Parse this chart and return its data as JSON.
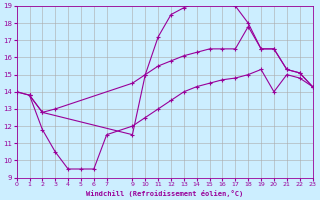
{
  "xlabel": "Windchill (Refroidissement éolien,°C)",
  "background_color": "#cceeff",
  "line_color": "#990099",
  "grid_color": "#aaaaaa",
  "xlim": [
    0,
    23
  ],
  "ylim": [
    9,
    19
  ],
  "xticks": [
    0,
    1,
    2,
    3,
    4,
    5,
    6,
    7,
    9,
    10,
    11,
    12,
    13,
    14,
    15,
    16,
    17,
    18,
    19,
    20,
    21,
    22,
    23
  ],
  "yticks": [
    9,
    10,
    11,
    12,
    13,
    14,
    15,
    16,
    17,
    18,
    19
  ],
  "curve1_x": [
    0,
    1,
    2,
    9,
    10,
    11,
    12,
    13,
    14,
    15,
    16,
    17,
    18,
    19,
    20,
    21,
    22,
    23
  ],
  "curve1_y": [
    14,
    13.8,
    12.8,
    11.5,
    15.0,
    17.2,
    18.5,
    18.9,
    19.2,
    19.2,
    19.2,
    19.0,
    18.0,
    16.5,
    16.5,
    15.3,
    15.1,
    14.3
  ],
  "curve2_x": [
    1,
    2,
    3,
    9,
    10,
    11,
    12,
    13,
    14,
    15,
    16,
    17,
    18,
    19,
    20,
    21,
    22,
    23
  ],
  "curve2_y": [
    13.8,
    12.8,
    13.0,
    14.5,
    15.0,
    15.5,
    15.8,
    16.1,
    16.3,
    16.5,
    16.5,
    16.5,
    17.8,
    16.5,
    16.5,
    15.3,
    15.1,
    14.3
  ],
  "curve3_x": [
    0,
    1,
    2,
    3,
    4,
    5,
    6,
    7,
    9,
    10,
    11,
    12,
    13,
    14,
    15,
    16,
    17,
    18,
    19,
    20,
    21,
    22,
    23
  ],
  "curve3_y": [
    14.0,
    13.8,
    11.8,
    10.5,
    9.5,
    9.5,
    9.5,
    11.5,
    12.0,
    12.5,
    13.0,
    13.5,
    14.0,
    14.3,
    14.5,
    14.7,
    14.8,
    15.0,
    15.3,
    14.0,
    15.0,
    14.8,
    14.3
  ]
}
